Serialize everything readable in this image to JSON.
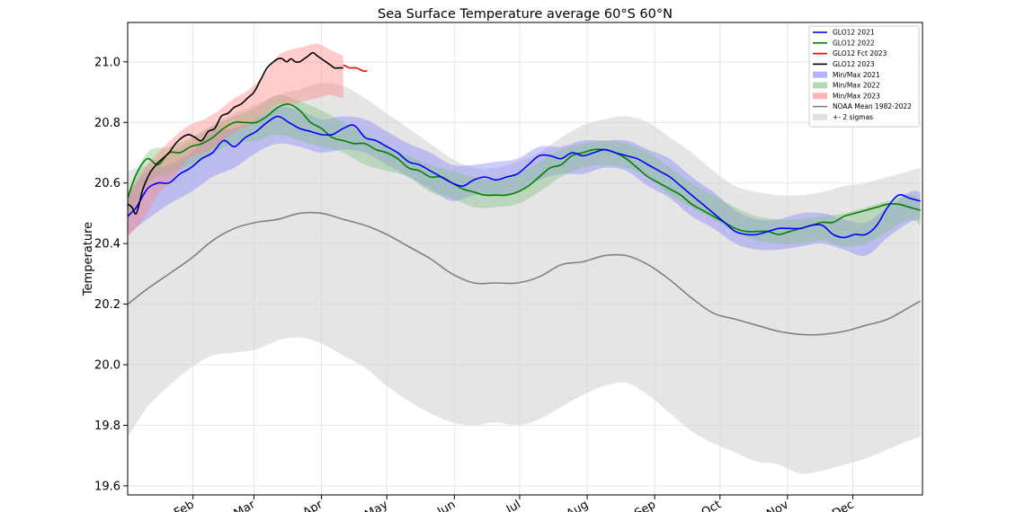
{
  "chart_data": {
    "type": "line",
    "title": "Sea Surface Temperature average 60°S 60°N",
    "xlabel": "",
    "ylabel": "Temperature",
    "ylim": [
      19.57,
      21.13
    ],
    "xlim": [
      1,
      366
    ],
    "grid": true,
    "legend_position": "top-right",
    "y_ticks": [
      19.6,
      19.8,
      20.0,
      20.2,
      20.4,
      20.6,
      20.8,
      21.0
    ],
    "y_tick_labels": [
      "19.6",
      "19.8",
      "20.0",
      "20.2",
      "20.4",
      "20.6",
      "20.8",
      "21.0"
    ],
    "x_ticks": [
      31,
      59,
      90,
      120,
      151,
      181,
      212,
      243,
      273,
      304,
      334
    ],
    "x_tick_labels": [
      "Feb",
      "Mar",
      "Apr",
      "May",
      "Jun",
      "Jul",
      "Aug",
      "Sep",
      "Oct",
      "Nov",
      "Dec"
    ],
    "colors": {
      "glo12_2021": "#0000ff",
      "glo12_2022": "#008000",
      "glo12_fct_2023": "#ff0000",
      "glo12_2023": "#000000",
      "minmax_2021": "#8080ff",
      "minmax_2022": "#80c080",
      "minmax_2023": "#ff8080",
      "noaa_mean": "#808080",
      "sigma_band": "#d3d3d3"
    },
    "series": [
      {
        "name": "GLO12 2021",
        "kind": "line",
        "x": [
          1,
          5,
          10,
          15,
          20,
          25,
          30,
          35,
          40,
          45,
          50,
          55,
          60,
          65,
          70,
          75,
          80,
          85,
          90,
          95,
          100,
          105,
          110,
          115,
          120,
          125,
          130,
          135,
          140,
          145,
          150,
          155,
          160,
          165,
          170,
          175,
          180,
          185,
          190,
          195,
          200,
          205,
          210,
          215,
          220,
          225,
          230,
          235,
          240,
          245,
          250,
          255,
          260,
          265,
          270,
          275,
          280,
          285,
          290,
          295,
          300,
          305,
          310,
          315,
          320,
          325,
          330,
          335,
          340,
          345,
          350,
          355,
          360,
          365
        ],
        "y": [
          20.49,
          20.52,
          20.58,
          20.6,
          20.6,
          20.63,
          20.65,
          20.68,
          20.7,
          20.74,
          20.72,
          20.75,
          20.77,
          20.8,
          20.82,
          20.8,
          20.78,
          20.77,
          20.76,
          20.76,
          20.78,
          20.79,
          20.75,
          20.74,
          20.72,
          20.7,
          20.67,
          20.66,
          20.64,
          20.62,
          20.6,
          20.59,
          20.61,
          20.62,
          20.61,
          20.62,
          20.63,
          20.66,
          20.69,
          20.69,
          20.68,
          20.7,
          20.69,
          20.7,
          20.71,
          20.7,
          20.69,
          20.68,
          20.66,
          20.64,
          20.62,
          20.59,
          20.56,
          20.53,
          20.5,
          20.47,
          20.44,
          20.43,
          20.43,
          20.44,
          20.45,
          20.45,
          20.45,
          20.46,
          20.46,
          20.43,
          20.42,
          20.43,
          20.43,
          20.46,
          20.52,
          20.56,
          20.55,
          20.54
        ]
      },
      {
        "name": "GLO12 2022",
        "kind": "line",
        "x": [
          1,
          5,
          10,
          15,
          20,
          25,
          30,
          35,
          40,
          45,
          50,
          55,
          60,
          65,
          70,
          75,
          80,
          85,
          90,
          95,
          100,
          105,
          110,
          115,
          120,
          125,
          130,
          135,
          140,
          145,
          150,
          155,
          160,
          165,
          170,
          175,
          180,
          185,
          190,
          195,
          200,
          205,
          210,
          215,
          220,
          225,
          230,
          235,
          240,
          245,
          250,
          255,
          260,
          265,
          270,
          275,
          280,
          285,
          290,
          295,
          300,
          305,
          310,
          315,
          320,
          325,
          330,
          335,
          340,
          345,
          350,
          355,
          360,
          365
        ],
        "y": [
          20.55,
          20.63,
          20.68,
          20.66,
          20.7,
          20.7,
          20.72,
          20.73,
          20.75,
          20.78,
          20.8,
          20.8,
          20.8,
          20.82,
          20.85,
          20.86,
          20.84,
          20.8,
          20.78,
          20.75,
          20.74,
          20.73,
          20.73,
          20.71,
          20.7,
          20.68,
          20.65,
          20.64,
          20.62,
          20.62,
          20.6,
          20.58,
          20.57,
          20.56,
          20.56,
          20.56,
          20.57,
          20.59,
          20.62,
          20.65,
          20.66,
          20.69,
          20.7,
          20.71,
          20.71,
          20.7,
          20.68,
          20.65,
          20.62,
          20.6,
          20.58,
          20.56,
          20.53,
          20.51,
          20.49,
          20.47,
          20.45,
          20.44,
          20.44,
          20.44,
          20.43,
          20.44,
          20.45,
          20.46,
          20.47,
          20.47,
          20.49,
          20.5,
          20.51,
          20.52,
          20.53,
          20.53,
          20.52,
          20.51
        ]
      },
      {
        "name": "GLO12 Fct 2023",
        "kind": "line",
        "x": [
          100,
          103,
          106,
          109,
          111
        ],
        "y": [
          20.99,
          20.98,
          20.98,
          20.97,
          20.97
        ]
      },
      {
        "name": "GLO12 2023",
        "kind": "line",
        "x": [
          1,
          3,
          5,
          8,
          11,
          14,
          17,
          20,
          23,
          26,
          29,
          32,
          35,
          38,
          41,
          44,
          47,
          50,
          53,
          56,
          59,
          62,
          65,
          68,
          70,
          72,
          74,
          76,
          78,
          80,
          82,
          84,
          86,
          88,
          90,
          92,
          94,
          96,
          98,
          100
        ],
        "y": [
          20.53,
          20.52,
          20.5,
          20.58,
          20.63,
          20.66,
          20.68,
          20.7,
          20.73,
          20.75,
          20.76,
          20.75,
          20.74,
          20.77,
          20.78,
          20.82,
          20.83,
          20.85,
          20.86,
          20.88,
          20.9,
          20.94,
          20.98,
          21.0,
          21.01,
          21.01,
          21.0,
          21.01,
          21.0,
          21.0,
          21.01,
          21.02,
          21.03,
          21.02,
          21.01,
          21.0,
          20.99,
          20.98,
          20.98,
          20.98
        ]
      },
      {
        "name": "Min/Max 2021",
        "kind": "band",
        "x": [
          1,
          10,
          20,
          30,
          40,
          50,
          60,
          70,
          80,
          90,
          100,
          110,
          120,
          130,
          140,
          150,
          160,
          170,
          180,
          190,
          200,
          210,
          220,
          230,
          240,
          250,
          260,
          270,
          280,
          290,
          300,
          310,
          320,
          330,
          340,
          350,
          360,
          365
        ],
        "lower": [
          20.43,
          20.48,
          20.53,
          20.57,
          20.62,
          20.65,
          20.7,
          20.73,
          20.72,
          20.7,
          20.71,
          20.7,
          20.66,
          20.62,
          20.58,
          20.54,
          20.56,
          20.56,
          20.57,
          20.61,
          20.63,
          20.63,
          20.65,
          20.64,
          20.59,
          20.55,
          20.49,
          20.45,
          20.4,
          20.38,
          20.38,
          20.39,
          20.4,
          20.38,
          20.36,
          20.42,
          20.47,
          20.48
        ],
        "upper": [
          20.56,
          20.64,
          20.66,
          20.7,
          20.77,
          20.78,
          20.81,
          20.85,
          20.84,
          20.81,
          20.82,
          20.81,
          20.77,
          20.73,
          20.7,
          20.66,
          20.66,
          20.67,
          20.68,
          20.72,
          20.72,
          20.74,
          20.74,
          20.74,
          20.71,
          20.68,
          20.62,
          20.57,
          20.51,
          20.48,
          20.48,
          20.5,
          20.5,
          20.48,
          20.47,
          20.52,
          20.57,
          20.57
        ]
      },
      {
        "name": "Min/Max 2022",
        "kind": "band",
        "x": [
          1,
          10,
          20,
          30,
          40,
          50,
          60,
          70,
          80,
          90,
          100,
          110,
          120,
          130,
          140,
          150,
          160,
          170,
          180,
          190,
          200,
          210,
          220,
          230,
          240,
          250,
          260,
          270,
          280,
          290,
          300,
          310,
          320,
          330,
          340,
          350,
          360,
          365
        ],
        "lower": [
          20.48,
          20.6,
          20.63,
          20.66,
          20.7,
          20.73,
          20.74,
          20.76,
          20.74,
          20.72,
          20.7,
          20.66,
          20.64,
          20.62,
          20.57,
          20.55,
          20.52,
          20.52,
          20.53,
          20.57,
          20.62,
          20.65,
          20.66,
          20.65,
          20.62,
          20.56,
          20.52,
          20.48,
          20.44,
          20.41,
          20.4,
          20.4,
          20.41,
          20.39,
          20.4,
          20.44,
          20.48,
          20.46
        ],
        "upper": [
          20.57,
          20.7,
          20.72,
          20.75,
          20.79,
          20.82,
          20.85,
          20.89,
          20.87,
          20.84,
          20.8,
          20.76,
          20.72,
          20.69,
          20.66,
          20.64,
          20.62,
          20.61,
          20.63,
          20.67,
          20.71,
          20.73,
          20.74,
          20.73,
          20.7,
          20.65,
          20.6,
          20.56,
          20.52,
          20.49,
          20.48,
          20.48,
          20.49,
          20.5,
          20.52,
          20.54,
          20.56,
          20.55
        ]
      },
      {
        "name": "Min/Max 2023",
        "kind": "band",
        "x": [
          1,
          8,
          15,
          22,
          29,
          36,
          43,
          50,
          57,
          64,
          70,
          76,
          82,
          88,
          94,
          100
        ],
        "lower": [
          20.42,
          20.48,
          20.56,
          20.62,
          20.68,
          20.7,
          20.73,
          20.77,
          20.79,
          20.83,
          20.86,
          20.86,
          20.87,
          20.88,
          20.89,
          20.88
        ],
        "upper": [
          20.56,
          20.64,
          20.7,
          20.75,
          20.79,
          20.81,
          20.84,
          20.88,
          20.91,
          20.96,
          21.02,
          21.04,
          21.05,
          21.06,
          21.04,
          21.02
        ]
      },
      {
        "name": "NOAA Mean 1982-2022",
        "kind": "line",
        "x": [
          1,
          10,
          20,
          30,
          40,
          50,
          60,
          70,
          80,
          90,
          100,
          110,
          120,
          130,
          140,
          150,
          160,
          170,
          180,
          190,
          200,
          210,
          220,
          230,
          240,
          250,
          260,
          270,
          280,
          290,
          300,
          310,
          320,
          330,
          340,
          350,
          360,
          365
        ],
        "y": [
          20.2,
          20.25,
          20.3,
          20.35,
          20.41,
          20.45,
          20.47,
          20.48,
          20.5,
          20.5,
          20.48,
          20.46,
          20.43,
          20.39,
          20.35,
          20.3,
          20.27,
          20.27,
          20.27,
          20.29,
          20.33,
          20.34,
          20.36,
          20.36,
          20.33,
          20.28,
          20.22,
          20.17,
          20.15,
          20.13,
          20.11,
          20.1,
          20.1,
          20.11,
          20.13,
          20.15,
          20.19,
          20.21
        ]
      },
      {
        "name": "+- 2 sigmas",
        "kind": "band",
        "x": [
          1,
          10,
          20,
          30,
          40,
          50,
          60,
          70,
          80,
          90,
          100,
          110,
          120,
          130,
          140,
          150,
          160,
          170,
          180,
          190,
          200,
          210,
          220,
          230,
          240,
          250,
          260,
          270,
          280,
          290,
          300,
          310,
          320,
          330,
          340,
          350,
          360,
          365
        ],
        "lower": [
          19.76,
          19.86,
          19.93,
          19.99,
          20.03,
          20.04,
          20.05,
          20.08,
          20.09,
          20.07,
          20.03,
          19.99,
          19.93,
          19.88,
          19.84,
          19.81,
          19.8,
          19.81,
          19.8,
          19.82,
          19.86,
          19.9,
          19.93,
          19.94,
          19.9,
          19.84,
          19.78,
          19.74,
          19.71,
          19.68,
          19.67,
          19.64,
          19.65,
          19.67,
          19.69,
          19.72,
          19.75,
          19.76
        ],
        "upper": [
          20.64,
          20.66,
          20.7,
          20.74,
          20.79,
          20.83,
          20.86,
          20.89,
          20.91,
          20.93,
          20.92,
          20.88,
          20.83,
          20.78,
          20.73,
          20.68,
          20.65,
          20.65,
          20.67,
          20.7,
          20.75,
          20.79,
          20.81,
          20.82,
          20.8,
          20.75,
          20.7,
          20.64,
          20.59,
          20.57,
          20.56,
          20.56,
          20.57,
          20.59,
          20.6,
          20.62,
          20.64,
          20.65
        ]
      }
    ],
    "legend": [
      {
        "label": "GLO12 2021",
        "kind": "line",
        "color": "#0000ff"
      },
      {
        "label": "GLO12 2022",
        "kind": "line",
        "color": "#008000"
      },
      {
        "label": "GLO12 Fct 2023",
        "kind": "line",
        "color": "#ff0000"
      },
      {
        "label": "GLO12 2023",
        "kind": "line",
        "color": "#000000"
      },
      {
        "label": "Min/Max 2021",
        "kind": "patch",
        "color": "#b3b3ff"
      },
      {
        "label": "Min/Max 2022",
        "kind": "patch",
        "color": "#b3d9b3"
      },
      {
        "label": "Min/Max 2023",
        "kind": "patch",
        "color": "#ffb3b3"
      },
      {
        "label": "NOAA Mean 1982-2022",
        "kind": "line",
        "color": "#808080"
      },
      {
        "label": "+- 2 sigmas",
        "kind": "patch",
        "color": "#e0e0e0"
      }
    ]
  }
}
